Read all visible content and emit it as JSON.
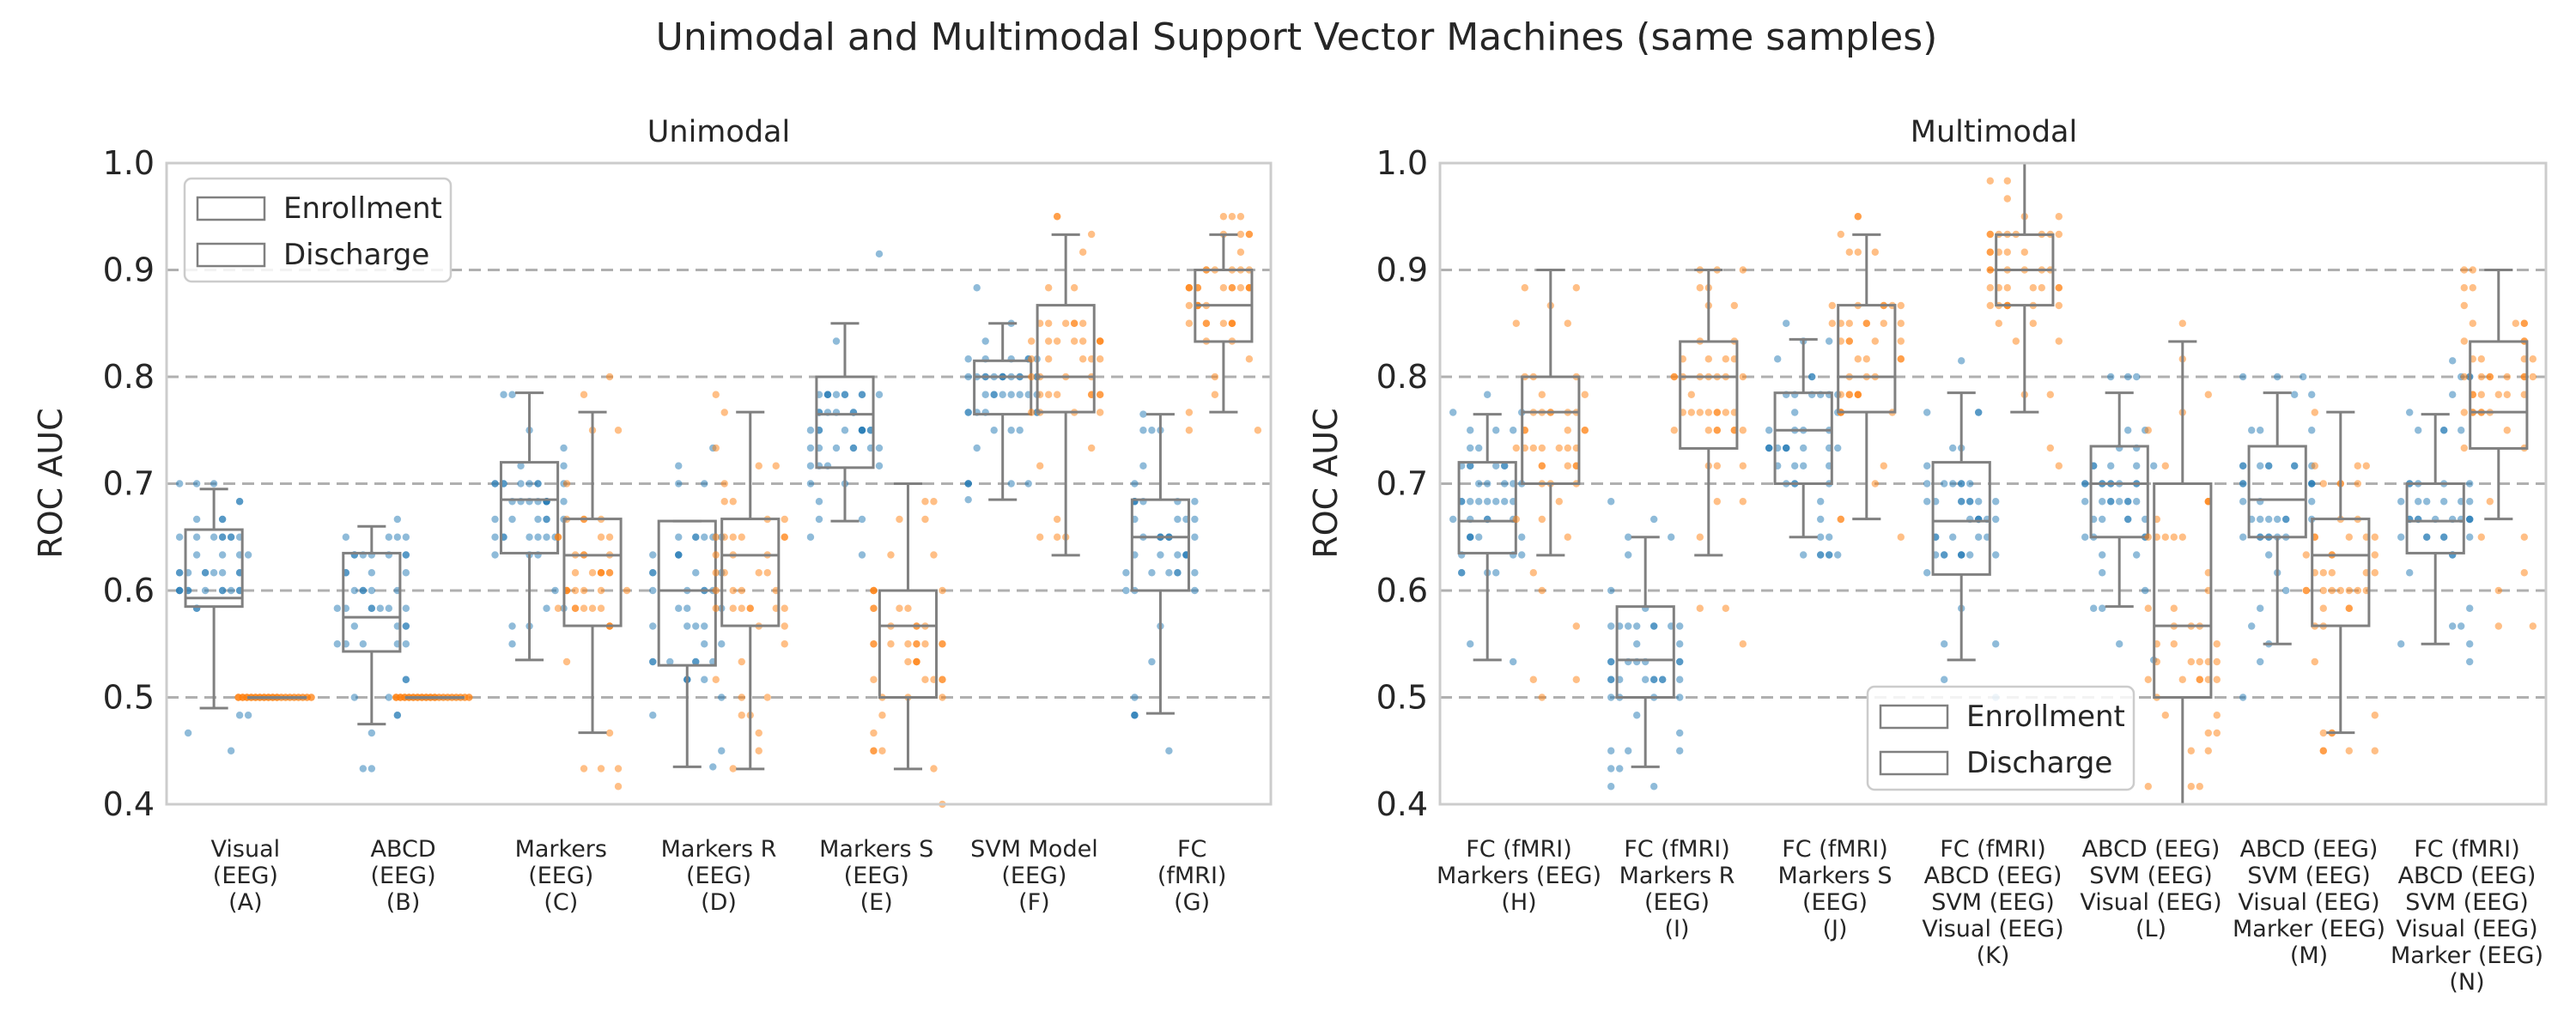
{
  "figure": {
    "title": "Unimodal and Multimodal Support Vector Machines (same samples)"
  },
  "colors": {
    "Enrollment": "#1f77b4",
    "Discharge": "#ff7f0e",
    "box": "#808080",
    "grid": "#b0b0b0",
    "frame": "#cccccc"
  },
  "chart_data": [
    {
      "type": "box",
      "title": "Unimodal",
      "ylabel": "ROC AUC",
      "ylim": [
        0.4,
        1.0
      ],
      "yticks": [
        "0.4",
        "0.5",
        "0.6",
        "0.7",
        "0.8",
        "0.9",
        "1.0"
      ],
      "grid": "horizontal dashed",
      "legend": {
        "placement": "upper-left",
        "entries": [
          "Enrollment",
          "Discharge"
        ]
      },
      "categories": [
        [
          "Visual",
          "(EEG)",
          "(A)"
        ],
        [
          "ABCD",
          "(EEG)",
          "(B)"
        ],
        [
          "Markers",
          "(EEG)",
          "(C)"
        ],
        [
          "Markers R",
          "(EEG)",
          "(D)"
        ],
        [
          "Markers S",
          "(EEG)",
          "(E)"
        ],
        [
          "SVM Model",
          "(EEG)",
          "(F)"
        ],
        [
          "FC",
          "(fMRI)",
          "(G)"
        ]
      ],
      "series": [
        {
          "name": "Enrollment",
          "boxes": [
            {
              "whislo": 0.49,
              "q1": 0.585,
              "med": 0.593,
              "q3": 0.657,
              "whishi": 0.695,
              "ymin": 0.45,
              "ymax": 0.7
            },
            {
              "whislo": 0.475,
              "q1": 0.543,
              "med": 0.575,
              "q3": 0.635,
              "whishi": 0.66,
              "ymin": 0.415,
              "ymax": 0.675
            },
            {
              "whislo": 0.535,
              "q1": 0.635,
              "med": 0.685,
              "q3": 0.72,
              "whishi": 0.785,
              "ymin": 0.535,
              "ymax": 0.8
            },
            {
              "whislo": 0.435,
              "q1": 0.53,
              "med": 0.6,
              "q3": 0.665,
              "whishi": 0.665,
              "ymin": 0.435,
              "ymax": 0.735
            },
            {
              "whislo": 0.665,
              "q1": 0.715,
              "med": 0.765,
              "q3": 0.8,
              "whishi": 0.85,
              "ymin": 0.615,
              "ymax": 0.915
            },
            {
              "whislo": 0.685,
              "q1": 0.765,
              "med": 0.8,
              "q3": 0.815,
              "whishi": 0.85,
              "ymin": 0.685,
              "ymax": 0.885
            },
            {
              "whislo": 0.485,
              "q1": 0.6,
              "med": 0.65,
              "q3": 0.685,
              "whishi": 0.765,
              "ymin": 0.45,
              "ymax": 0.765
            }
          ]
        },
        {
          "name": "Discharge",
          "boxes": [
            {
              "whislo": 0.5,
              "q1": 0.5,
              "med": 0.5,
              "q3": 0.5,
              "whishi": 0.5,
              "ymin": 0.5,
              "ymax": 0.5
            },
            {
              "whislo": 0.5,
              "q1": 0.5,
              "med": 0.5,
              "q3": 0.5,
              "whishi": 0.5,
              "ymin": 0.5,
              "ymax": 0.5
            },
            {
              "whislo": 0.467,
              "q1": 0.567,
              "med": 0.633,
              "q3": 0.667,
              "whishi": 0.767,
              "ymin": 0.4,
              "ymax": 0.8
            },
            {
              "whislo": 0.433,
              "q1": 0.567,
              "med": 0.633,
              "q3": 0.667,
              "whishi": 0.767,
              "ymin": 0.433,
              "ymax": 0.8
            },
            {
              "whislo": 0.433,
              "q1": 0.5,
              "med": 0.567,
              "q3": 0.6,
              "whishi": 0.7,
              "ymin": 0.4,
              "ymax": 0.7
            },
            {
              "whislo": 0.633,
              "q1": 0.767,
              "med": 0.8,
              "q3": 0.867,
              "whishi": 0.933,
              "ymin": 0.5,
              "ymax": 0.967
            },
            {
              "whislo": 0.767,
              "q1": 0.833,
              "med": 0.867,
              "q3": 0.9,
              "whishi": 0.933,
              "ymin": 0.733,
              "ymax": 0.967
            }
          ]
        }
      ]
    },
    {
      "type": "box",
      "title": "Multimodal",
      "ylabel": "ROC AUC",
      "ylim": [
        0.4,
        1.0
      ],
      "yticks": [
        "0.4",
        "0.5",
        "0.6",
        "0.7",
        "0.8",
        "0.9",
        "1.0"
      ],
      "grid": "horizontal dashed",
      "legend": {
        "placement": "lower-center-right",
        "entries": [
          "Enrollment",
          "Discharge"
        ]
      },
      "categories": [
        [
          "FC (fMRI)",
          "Markers (EEG)",
          "(H)"
        ],
        [
          "FC (fMRI)",
          "Markers R",
          "(EEG)",
          "(I)"
        ],
        [
          "FC (fMRI)",
          "Markers S",
          "(EEG)",
          "(J)"
        ],
        [
          "FC (fMRI)",
          "ABCD (EEG)",
          "SVM (EEG)",
          "Visual (EEG)",
          "(K)"
        ],
        [
          "ABCD (EEG)",
          "SVM (EEG)",
          "Visual (EEG)",
          "(L)"
        ],
        [
          "ABCD (EEG)",
          "SVM (EEG)",
          "Visual (EEG)",
          "Marker (EEG)",
          "(M)"
        ],
        [
          "FC (fMRI)",
          "ABCD (EEG)",
          "SVM (EEG)",
          "Visual (EEG)",
          "Marker (EEG)",
          "(N)"
        ]
      ],
      "series": [
        {
          "name": "Enrollment",
          "boxes": [
            {
              "whislo": 0.535,
              "q1": 0.635,
              "med": 0.665,
              "q3": 0.72,
              "whishi": 0.765,
              "ymin": 0.5,
              "ymax": 0.785
            },
            {
              "whislo": 0.435,
              "q1": 0.5,
              "med": 0.535,
              "q3": 0.585,
              "whishi": 0.65,
              "ymin": 0.415,
              "ymax": 0.7
            },
            {
              "whislo": 0.65,
              "q1": 0.7,
              "med": 0.75,
              "q3": 0.785,
              "whishi": 0.835,
              "ymin": 0.615,
              "ymax": 0.85
            },
            {
              "whislo": 0.535,
              "q1": 0.615,
              "med": 0.665,
              "q3": 0.72,
              "whishi": 0.785,
              "ymin": 0.5,
              "ymax": 0.815
            },
            {
              "whislo": 0.585,
              "q1": 0.65,
              "med": 0.7,
              "q3": 0.735,
              "whishi": 0.785,
              "ymin": 0.535,
              "ymax": 0.815
            },
            {
              "whislo": 0.55,
              "q1": 0.65,
              "med": 0.685,
              "q3": 0.735,
              "whishi": 0.785,
              "ymin": 0.5,
              "ymax": 0.815
            },
            {
              "whislo": 0.55,
              "q1": 0.635,
              "med": 0.665,
              "q3": 0.7,
              "whishi": 0.765,
              "ymin": 0.5,
              "ymax": 0.815
            }
          ]
        },
        {
          "name": "Discharge",
          "boxes": [
            {
              "whislo": 0.633,
              "q1": 0.7,
              "med": 0.767,
              "q3": 0.8,
              "whishi": 0.9,
              "ymin": 0.5,
              "ymax": 0.9
            },
            {
              "whislo": 0.633,
              "q1": 0.733,
              "med": 0.8,
              "q3": 0.833,
              "whishi": 0.9,
              "ymin": 0.533,
              "ymax": 0.9
            },
            {
              "whislo": 0.667,
              "q1": 0.767,
              "med": 0.8,
              "q3": 0.867,
              "whishi": 0.933,
              "ymin": 0.633,
              "ymax": 0.967
            },
            {
              "whislo": 0.767,
              "q1": 0.867,
              "med": 0.9,
              "q3": 0.933,
              "whishi": 1.0,
              "ymin": 0.7,
              "ymax": 1.0
            },
            {
              "whislo": 0.4,
              "q1": 0.5,
              "med": 0.567,
              "q3": 0.7,
              "whishi": 0.833,
              "ymin": 0.4,
              "ymax": 0.933
            },
            {
              "whislo": 0.467,
              "q1": 0.567,
              "med": 0.633,
              "q3": 0.667,
              "whishi": 0.767,
              "ymin": 0.433,
              "ymax": 0.767
            },
            {
              "whislo": 0.667,
              "q1": 0.733,
              "med": 0.767,
              "q3": 0.833,
              "whishi": 0.9,
              "ymin": 0.533,
              "ymax": 0.9
            }
          ]
        }
      ]
    }
  ]
}
